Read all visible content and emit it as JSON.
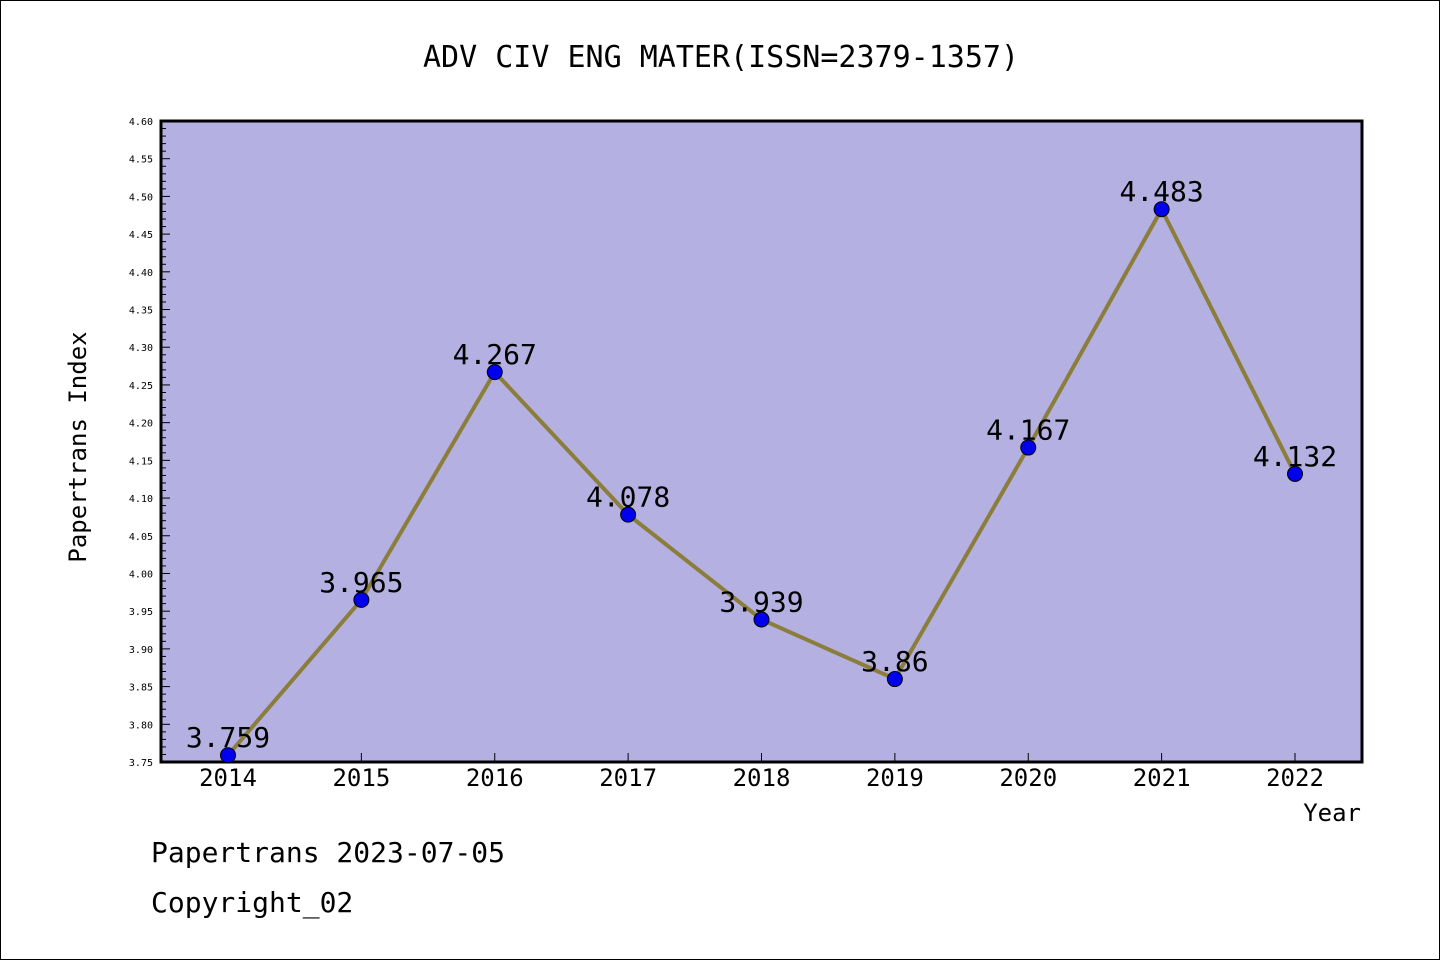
{
  "chart_data": {
    "type": "line",
    "title": "ADV CIV ENG MATER(ISSN=2379-1357)",
    "xlabel": "Year",
    "ylabel": "Papertrans Index",
    "categories": [
      "2014",
      "2015",
      "2016",
      "2017",
      "2018",
      "2019",
      "2020",
      "2021",
      "2022"
    ],
    "values": [
      3.759,
      3.965,
      4.267,
      4.078,
      3.939,
      3.86,
      4.167,
      4.483,
      4.132
    ],
    "data_labels": [
      "3.759",
      "3.965",
      "4.267",
      "4.078",
      "3.939",
      "3.86",
      "4.167",
      "4.483",
      "4.132"
    ],
    "ylim": [
      3.75,
      4.6
    ],
    "yticks": [
      "3.75",
      "3.80",
      "3.85",
      "3.90",
      "3.95",
      "4.00",
      "4.05",
      "4.10",
      "4.15",
      "4.20",
      "4.25",
      "4.30",
      "4.35",
      "4.40",
      "4.45",
      "4.50",
      "4.55",
      "4.60"
    ],
    "grid": false,
    "colors": {
      "plot_background": "#b5b0e2",
      "line": "#8b7d3a",
      "marker": "#0000ee"
    }
  },
  "footer": {
    "line1": "Papertrans 2023-07-05",
    "line2": "Copyright_02"
  }
}
